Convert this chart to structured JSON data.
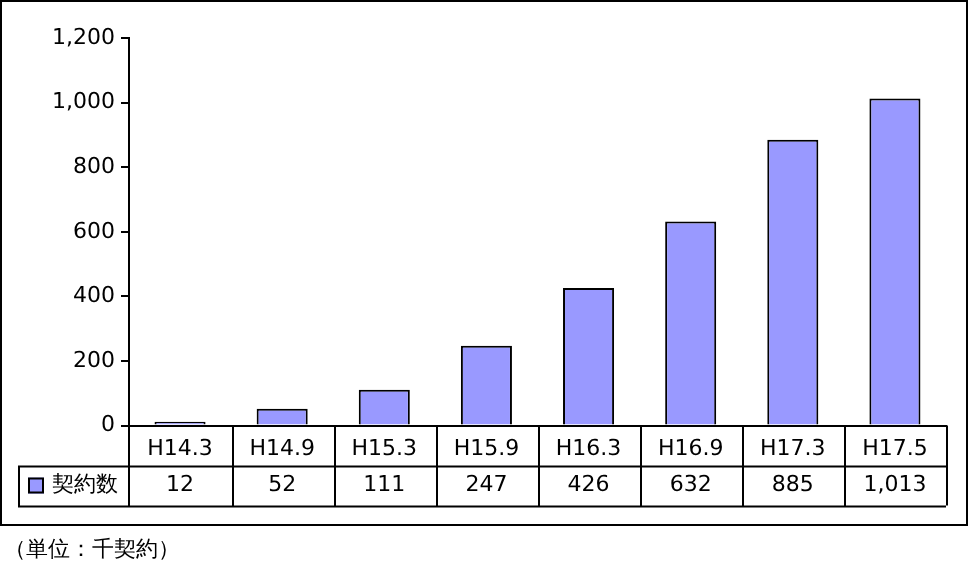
{
  "chart_data": {
    "type": "bar",
    "categories": [
      "H14.3",
      "H14.9",
      "H15.3",
      "H15.9",
      "H16.3",
      "H16.9",
      "H17.3",
      "H17.5"
    ],
    "series": [
      {
        "name": "契約数",
        "color": "#9999ff",
        "values": [
          12,
          52,
          111,
          247,
          426,
          632,
          885,
          1013
        ],
        "value_labels": [
          "12",
          "52",
          "111",
          "247",
          "426",
          "632",
          "885",
          "1,013"
        ]
      }
    ],
    "ylim": [
      0,
      1200
    ],
    "yticks": [
      0,
      200,
      400,
      600,
      800,
      {
        "value": 1000,
        "label": "1,000"
      },
      {
        "value": 1200,
        "label": "1,200"
      }
    ],
    "grid": false,
    "legend": "bottom",
    "annotations": [
      "（単位：千契約）"
    ]
  }
}
